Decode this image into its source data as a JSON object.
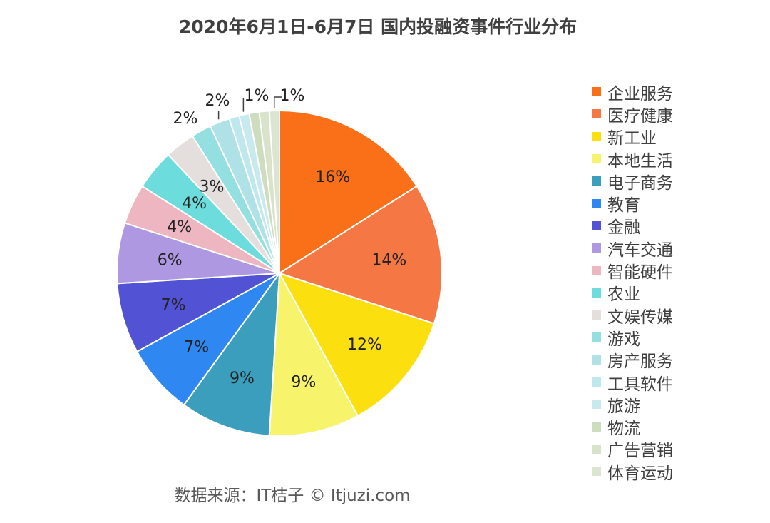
{
  "chart_data": {
    "type": "pie",
    "title": "2020年6月1日-6月7日 国内投融资事件行业分布",
    "source": "数据来源：IT桔子 © Itjuzi.com",
    "legend_position": "right",
    "slices": [
      {
        "name": "企业服务",
        "value": 16,
        "label": "16%",
        "color": "#FA7019"
      },
      {
        "name": "医疗健康",
        "value": 14,
        "label": "14%",
        "color": "#F47744"
      },
      {
        "name": "新工业",
        "value": 12,
        "label": "12%",
        "color": "#FCDF0F"
      },
      {
        "name": "本地生活",
        "value": 9,
        "label": "9%",
        "color": "#F7F36B"
      },
      {
        "name": "电子商务",
        "value": 9,
        "label": "9%",
        "color": "#3C9EBD"
      },
      {
        "name": "教育",
        "value": 7,
        "label": "7%",
        "color": "#2F87F2"
      },
      {
        "name": "金融",
        "value": 7,
        "label": "7%",
        "color": "#5252D4"
      },
      {
        "name": "汽车交通",
        "value": 6,
        "label": "6%",
        "color": "#AE98E2"
      },
      {
        "name": "智能硬件",
        "value": 4,
        "label": "4%",
        "color": "#EDB6C1"
      },
      {
        "name": "农业",
        "value": 4,
        "label": "4%",
        "color": "#6DDCDC"
      },
      {
        "name": "文娱传媒",
        "value": 3,
        "label": "3%",
        "color": "#E4DEDD"
      },
      {
        "name": "游戏",
        "value": 2,
        "label": "2%",
        "color": "#94DFE0"
      },
      {
        "name": "房产服务",
        "value": 2,
        "label": "2%",
        "color": "#AEE2E6"
      },
      {
        "name": "工具软件",
        "value": 1,
        "label": "",
        "color": "#BEE8EE"
      },
      {
        "name": "旅游",
        "value": 1,
        "label": "1%",
        "color": "#C8EAEF"
      },
      {
        "name": "物流",
        "value": 1,
        "label": "",
        "color": "#CFDDBF"
      },
      {
        "name": "广告营销",
        "value": 1,
        "label": "",
        "color": "#D8E3C9"
      },
      {
        "name": "体育运动",
        "value": 1,
        "label": "1%",
        "color": "#DCE4D2"
      }
    ]
  }
}
